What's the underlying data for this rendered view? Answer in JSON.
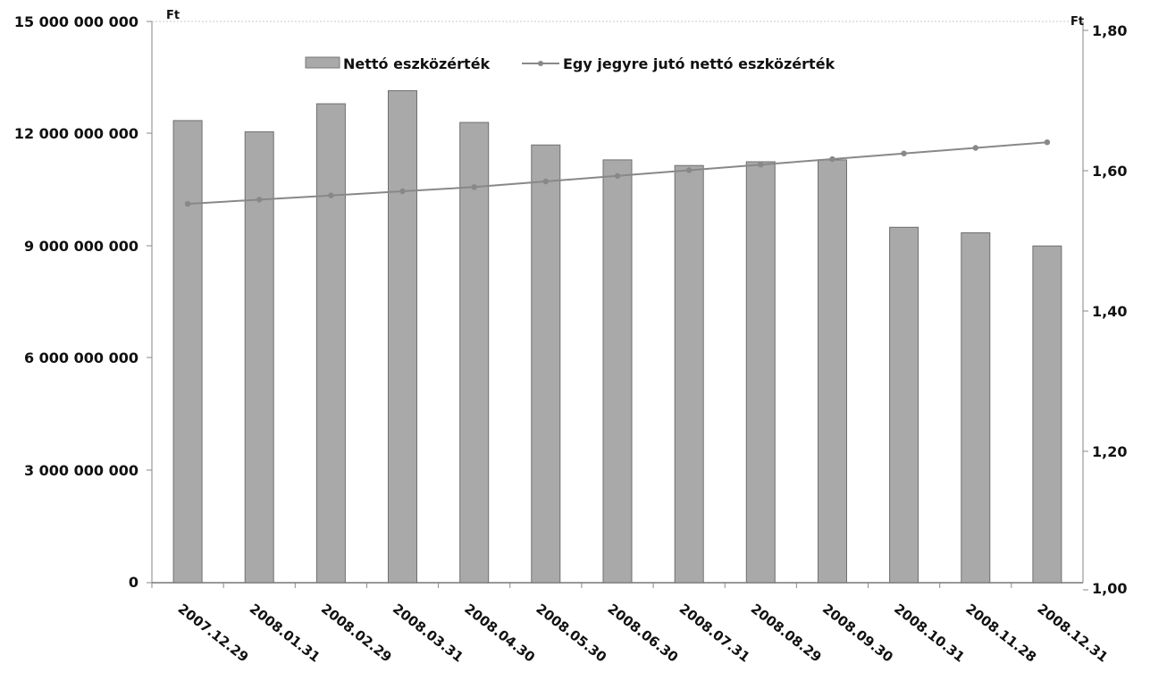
{
  "chart_data": {
    "type": "bar",
    "categories": [
      "2007.12.29",
      "2008.01.31",
      "2008.02.29",
      "2008.03.31",
      "2008.04.30",
      "2008.05.30",
      "2008.06.30",
      "2008.07.31",
      "2008.08.29",
      "2008.09.30",
      "2008.10.31",
      "2008.11.28",
      "2008.12.31"
    ],
    "series": [
      {
        "name": "Nettó eszközérték",
        "type": "bar",
        "axis": "left",
        "values": [
          12350000000,
          12050000000,
          12800000000,
          13150000000,
          12300000000,
          11700000000,
          11300000000,
          11150000000,
          11250000000,
          11300000000,
          9500000000,
          9350000000,
          9000000000
        ],
        "color": "#a9a9a9"
      },
      {
        "name": "Egy jegyre jutó nettó eszközérték",
        "type": "line",
        "axis": "right",
        "values": [
          1.552,
          1.558,
          1.564,
          1.57,
          1.576,
          1.584,
          1.592,
          1.6,
          1.608,
          1.616,
          1.624,
          1.632,
          1.64
        ],
        "color": "#888888"
      }
    ],
    "y_left": {
      "unit": "Ft",
      "ticks": [
        "15 000 000 000",
        "12 000 000 000",
        "9 000 000 000",
        "6 000 000 000",
        "3 000 000 000",
        "0"
      ],
      "ylim": [
        0,
        15000000000
      ]
    },
    "y_right": {
      "unit": "Ft",
      "ticks": [
        "1,80",
        "1,60",
        "1,40",
        "1,20",
        "1,00"
      ],
      "ylim": [
        1.0,
        1.8
      ]
    },
    "legend": {
      "placement": "top",
      "bar_label": "Nettó eszközérték",
      "line_label": "Egy jegyre jutó nettó eszközérték"
    }
  }
}
